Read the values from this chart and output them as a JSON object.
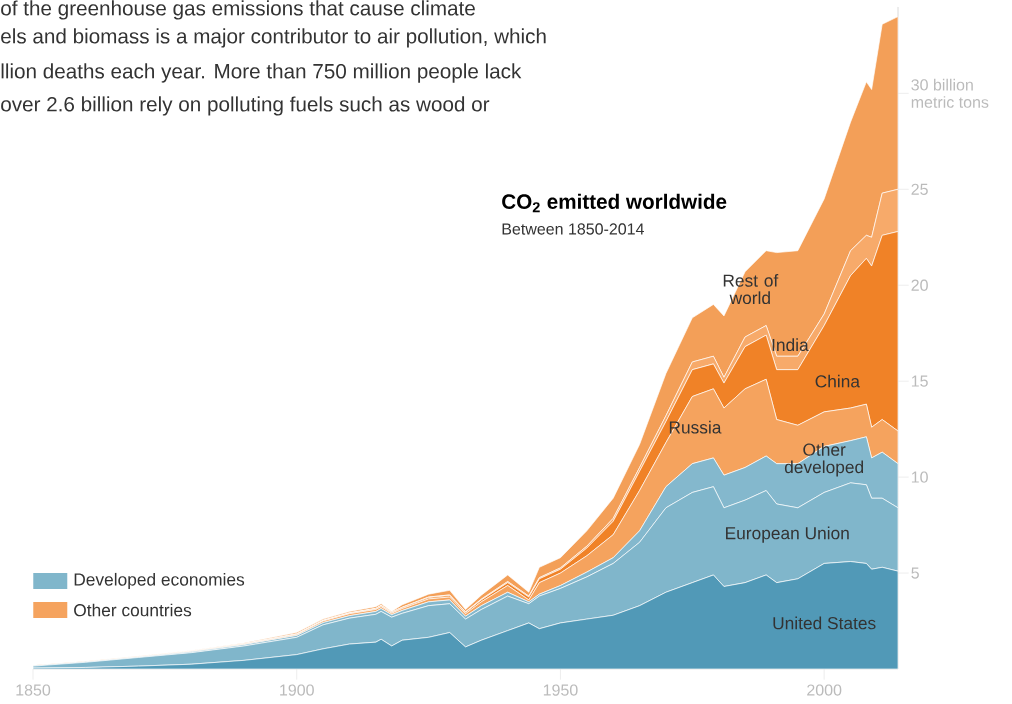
{
  "chart_data": {
    "type": "area",
    "stacked": true,
    "title": "CO$_{2}$ emitted worldwide",
    "subtitle": "Between 1850-2014",
    "annotations": [
      "of the greenhouse gas emissions that cause climate",
      "els and biomass is a major contributor to air pollution, which",
      "llion deaths each year. More than 750 million people lack",
      "over 2.6 billion rely on polluting fuels such as wood or",
      "Developed economies",
      "Other countries"
    ],
    "x": [
      1850,
      1860,
      1870,
      1880,
      1890,
      1900,
      1905,
      1910,
      1915,
      1916,
      1918,
      1920,
      1925,
      1929,
      1932,
      1935,
      1940,
      1944,
      1946,
      1950,
      1955,
      1960,
      1965,
      1970,
      1975,
      1979,
      1981,
      1985,
      1989,
      1991,
      1995,
      2000,
      2005,
      2008,
      2009,
      2011,
      2014
    ],
    "series": [
      {
        "name": "United States",
        "color": "#5199b7",
        "values": [
          0.05,
          0.08,
          0.15,
          0.25,
          0.45,
          0.75,
          1.05,
          1.3,
          1.4,
          1.55,
          1.2,
          1.5,
          1.65,
          1.9,
          1.15,
          1.5,
          2.0,
          2.4,
          2.1,
          2.4,
          2.6,
          2.8,
          3.3,
          4.0,
          4.5,
          4.9,
          4.3,
          4.5,
          4.9,
          4.5,
          4.7,
          5.5,
          5.6,
          5.5,
          5.2,
          5.3,
          5.1
        ]
      },
      {
        "name": "European Union",
        "color": "#80b6cb",
        "values": [
          0.1,
          0.27,
          0.45,
          0.6,
          0.75,
          0.9,
          1.25,
          1.35,
          1.45,
          1.45,
          1.5,
          1.4,
          1.65,
          1.5,
          1.45,
          1.6,
          1.8,
          1.0,
          1.7,
          1.8,
          2.2,
          2.7,
          3.3,
          4.4,
          4.7,
          4.6,
          4.1,
          4.3,
          4.4,
          4.1,
          3.7,
          3.7,
          4.1,
          4.1,
          3.7,
          3.6,
          3.3
        ]
      },
      {
        "name": "Other developed",
        "color": "#84b8cd",
        "values": [
          0.02,
          0.03,
          0.03,
          0.05,
          0.07,
          0.1,
          0.12,
          0.13,
          0.15,
          0.15,
          0.13,
          0.15,
          0.2,
          0.2,
          0.15,
          0.2,
          0.2,
          0.1,
          0.1,
          0.15,
          0.25,
          0.3,
          0.6,
          1.1,
          1.5,
          1.5,
          1.7,
          1.7,
          1.8,
          2.1,
          2.3,
          2.4,
          2.2,
          2.5,
          2.1,
          2.4,
          2.3
        ]
      },
      {
        "name": "Russia",
        "color": "#f5a35e",
        "values": [
          0.02,
          0.02,
          0.02,
          0.03,
          0.03,
          0.05,
          0.08,
          0.1,
          0.1,
          0.1,
          0.07,
          0.1,
          0.15,
          0.15,
          0.13,
          0.2,
          0.35,
          0.1,
          0.6,
          0.65,
          0.85,
          1.2,
          2.1,
          2.3,
          3.5,
          3.6,
          3.5,
          4.1,
          4.0,
          2.3,
          2.0,
          1.8,
          1.7,
          1.7,
          1.6,
          1.7,
          1.7
        ]
      },
      {
        "name": "China",
        "color": "#f08227",
        "values": [
          0.01,
          0.01,
          0.01,
          0.01,
          0.01,
          0.02,
          0.02,
          0.03,
          0.04,
          0.05,
          0.04,
          0.05,
          0.07,
          0.08,
          0.07,
          0.1,
          0.15,
          0.15,
          0.2,
          0.2,
          0.4,
          0.7,
          1.0,
          1.1,
          1.4,
          1.3,
          1.3,
          2.2,
          2.3,
          2.6,
          2.9,
          4.5,
          6.9,
          7.6,
          8.4,
          9.6,
          10.4
        ]
      },
      {
        "name": "India",
        "color": "#f7aa6a",
        "values": [
          0,
          0,
          0,
          0,
          0.01,
          0.01,
          0.02,
          0.02,
          0.02,
          0.02,
          0.02,
          0.02,
          0.03,
          0.03,
          0.03,
          0.04,
          0.06,
          0.05,
          0.06,
          0.07,
          0.1,
          0.15,
          0.2,
          0.3,
          0.4,
          0.4,
          0.3,
          0.5,
          0.5,
          0.7,
          0.7,
          0.6,
          1.3,
          1.2,
          1.5,
          2.2,
          2.2
        ]
      },
      {
        "name": "Rest of world",
        "color": "#f39f58",
        "values": [
          0,
          0.01,
          0.02,
          0.03,
          0.04,
          0.07,
          0.06,
          0.07,
          0.09,
          0.08,
          0.04,
          0.13,
          0.15,
          0.24,
          0.12,
          0.21,
          0.34,
          0.2,
          0.54,
          0.53,
          0.8,
          1.05,
          1.2,
          2.2,
          2.3,
          2.7,
          3.2,
          3.4,
          3.9,
          5.4,
          5.5,
          6.0,
          6.7,
          8.0,
          7.7,
          8.8,
          9.0
        ]
      }
    ],
    "xlim": [
      1850,
      2014
    ],
    "ylim": [
      0,
      34.5
    ],
    "xticks": [
      1850,
      1900,
      1950,
      2000
    ],
    "yticks": [
      5,
      10,
      15,
      20,
      25,
      {
        "value": 30,
        "label": "30 billion metric tons"
      }
    ]
  }
}
